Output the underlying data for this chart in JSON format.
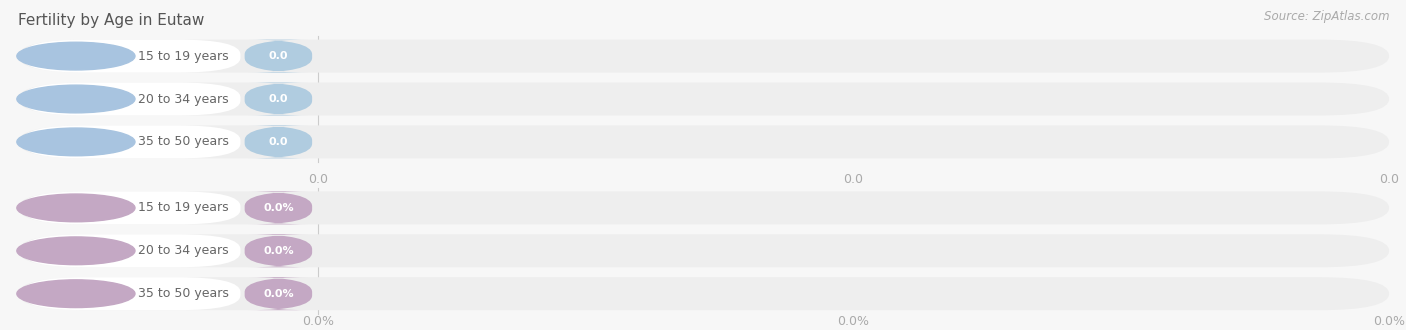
{
  "title": "Fertility by Age in Eutaw",
  "source_text": "Source: ZipAtlas.com",
  "background_color": "#f7f7f7",
  "top_section": {
    "bar_color": "#a8c4e0",
    "value_bg": "#b0cce0",
    "categories": [
      "15 to 19 years",
      "20 to 34 years",
      "35 to 50 years"
    ],
    "value_labels": [
      "0.0",
      "0.0",
      "0.0"
    ],
    "x_tick_labels": [
      "0.0",
      "0.0",
      "0.0"
    ]
  },
  "bottom_section": {
    "bar_color": "#c4a8c4",
    "value_bg": "#c4a8c4",
    "categories": [
      "15 to 19 years",
      "20 to 34 years",
      "35 to 50 years"
    ],
    "value_labels": [
      "0.0%",
      "0.0%",
      "0.0%"
    ],
    "x_tick_labels": [
      "0.0%",
      "0.0%",
      "0.0%"
    ]
  },
  "bar_track_color": "#eeeeee",
  "divider_color": "#cccccc",
  "label_text_color": "#666666",
  "axis_tick_color": "#aaaaaa",
  "title_color": "#555555",
  "title_fontsize": 11,
  "source_fontsize": 8.5,
  "label_fontsize": 9,
  "value_fontsize": 8,
  "tick_fontsize": 9
}
